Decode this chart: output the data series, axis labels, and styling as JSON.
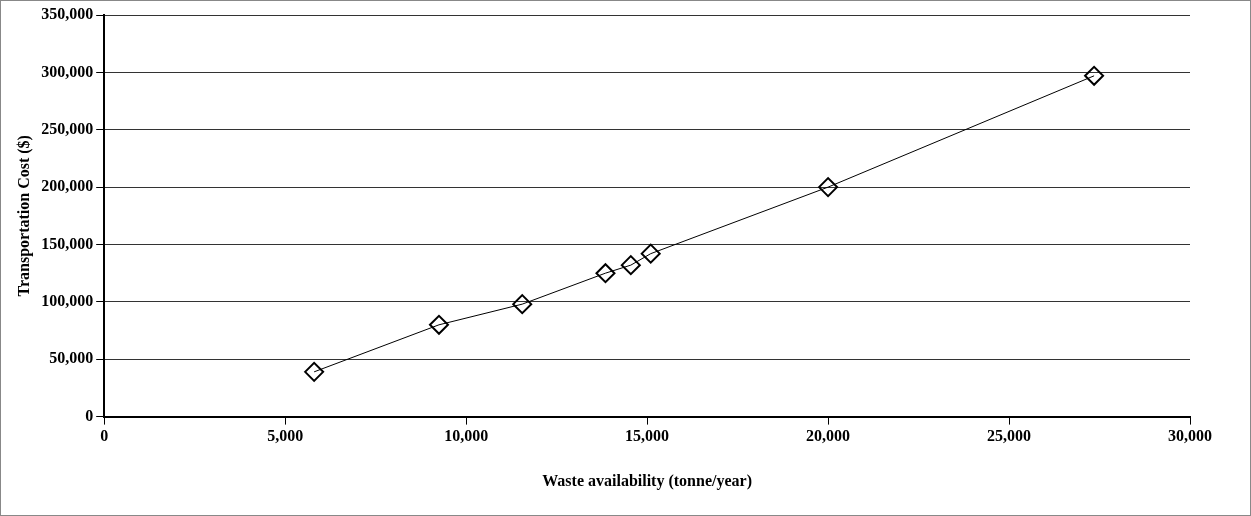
{
  "chart_data": {
    "type": "line",
    "xlabel": "Waste availability (tonne/year)",
    "ylabel": "Transportation Cost ($)",
    "x": [
      5800,
      9250,
      11550,
      13850,
      14550,
      15100,
      20000,
      27350
    ],
    "series": [
      {
        "color": "#000000",
        "values": [
          39000,
          80000,
          98000,
          125000,
          132000,
          142000,
          200000,
          297000
        ]
      }
    ],
    "xlim": [
      0,
      30000
    ],
    "xticks": [
      {
        "value": 0,
        "label": "0"
      },
      {
        "value": 5000,
        "label": "5,000"
      },
      {
        "value": 10000,
        "label": "10,000"
      },
      {
        "value": 15000,
        "label": "15,000"
      },
      {
        "value": 20000,
        "label": "20,000"
      },
      {
        "value": 25000,
        "label": "25,000"
      },
      {
        "value": 30000,
        "label": "30,000"
      }
    ],
    "ylim": [
      0,
      350000
    ],
    "yticks": [
      {
        "value": 0,
        "label": "0"
      },
      {
        "value": 50000,
        "label": "50,000"
      },
      {
        "value": 100000,
        "label": "100,000"
      },
      {
        "value": 150000,
        "label": "150,000"
      },
      {
        "value": 200000,
        "label": "200,000"
      },
      {
        "value": 250000,
        "label": "250,000"
      },
      {
        "value": 300000,
        "label": "300,000"
      },
      {
        "value": 350000,
        "label": "350,000"
      }
    ],
    "grid": "y",
    "legend": false,
    "marker": "diamond",
    "line_style": "solid"
  }
}
